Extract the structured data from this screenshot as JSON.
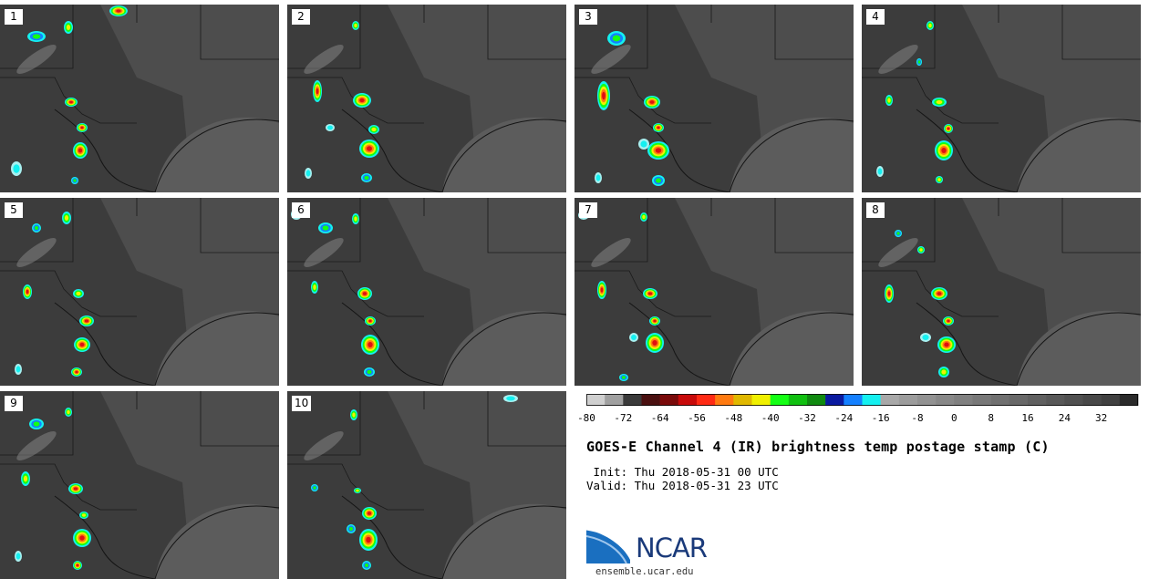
{
  "panels": [
    {
      "label": "1"
    },
    {
      "label": "2"
    },
    {
      "label": "3"
    },
    {
      "label": "4"
    },
    {
      "label": "5"
    },
    {
      "label": "6"
    },
    {
      "label": "7"
    },
    {
      "label": "8"
    },
    {
      "label": "9"
    },
    {
      "label": "10"
    }
  ],
  "title": "GOES-E Channel 4 (IR) brightness temp postage stamp (C)",
  "init_text": " Init: Thu 2018-05-31 00 UTC",
  "valid_text": "Valid: Thu 2018-05-31 23 UTC",
  "logo": {
    "text": "NCAR",
    "url": "ensemble.ucar.edu",
    "icon": "ncar-swoosh-logo"
  },
  "chart_data": {
    "type": "heatmap",
    "title": "GOES-E Channel 4 (IR) brightness temp postage stamp (C)",
    "colorbar": {
      "min": -80,
      "max": 40,
      "step": 4,
      "tick_labels": [
        "-80",
        "-72",
        "-64",
        "-56",
        "-48",
        "-40",
        "-32",
        "-24",
        "-16",
        "-8",
        "0",
        "8",
        "16",
        "24",
        "32"
      ],
      "colors": [
        "#cfcfcf",
        "#a0a0a0",
        "#3a3a3a",
        "#4a1010",
        "#7a0a0a",
        "#c80a0a",
        "#ff2a14",
        "#ff7a10",
        "#e0b800",
        "#f0f000",
        "#14ff14",
        "#10c010",
        "#108a10",
        "#0a1aa0",
        "#1480ff",
        "#14f0f0",
        "#a8a8a8",
        "#9c9c9c",
        "#929292",
        "#888888",
        "#808080",
        "#787878",
        "#707070",
        "#686868",
        "#606060",
        "#585858",
        "#505050",
        "#484848",
        "#404040",
        "#2a2a2a"
      ]
    }
  }
}
